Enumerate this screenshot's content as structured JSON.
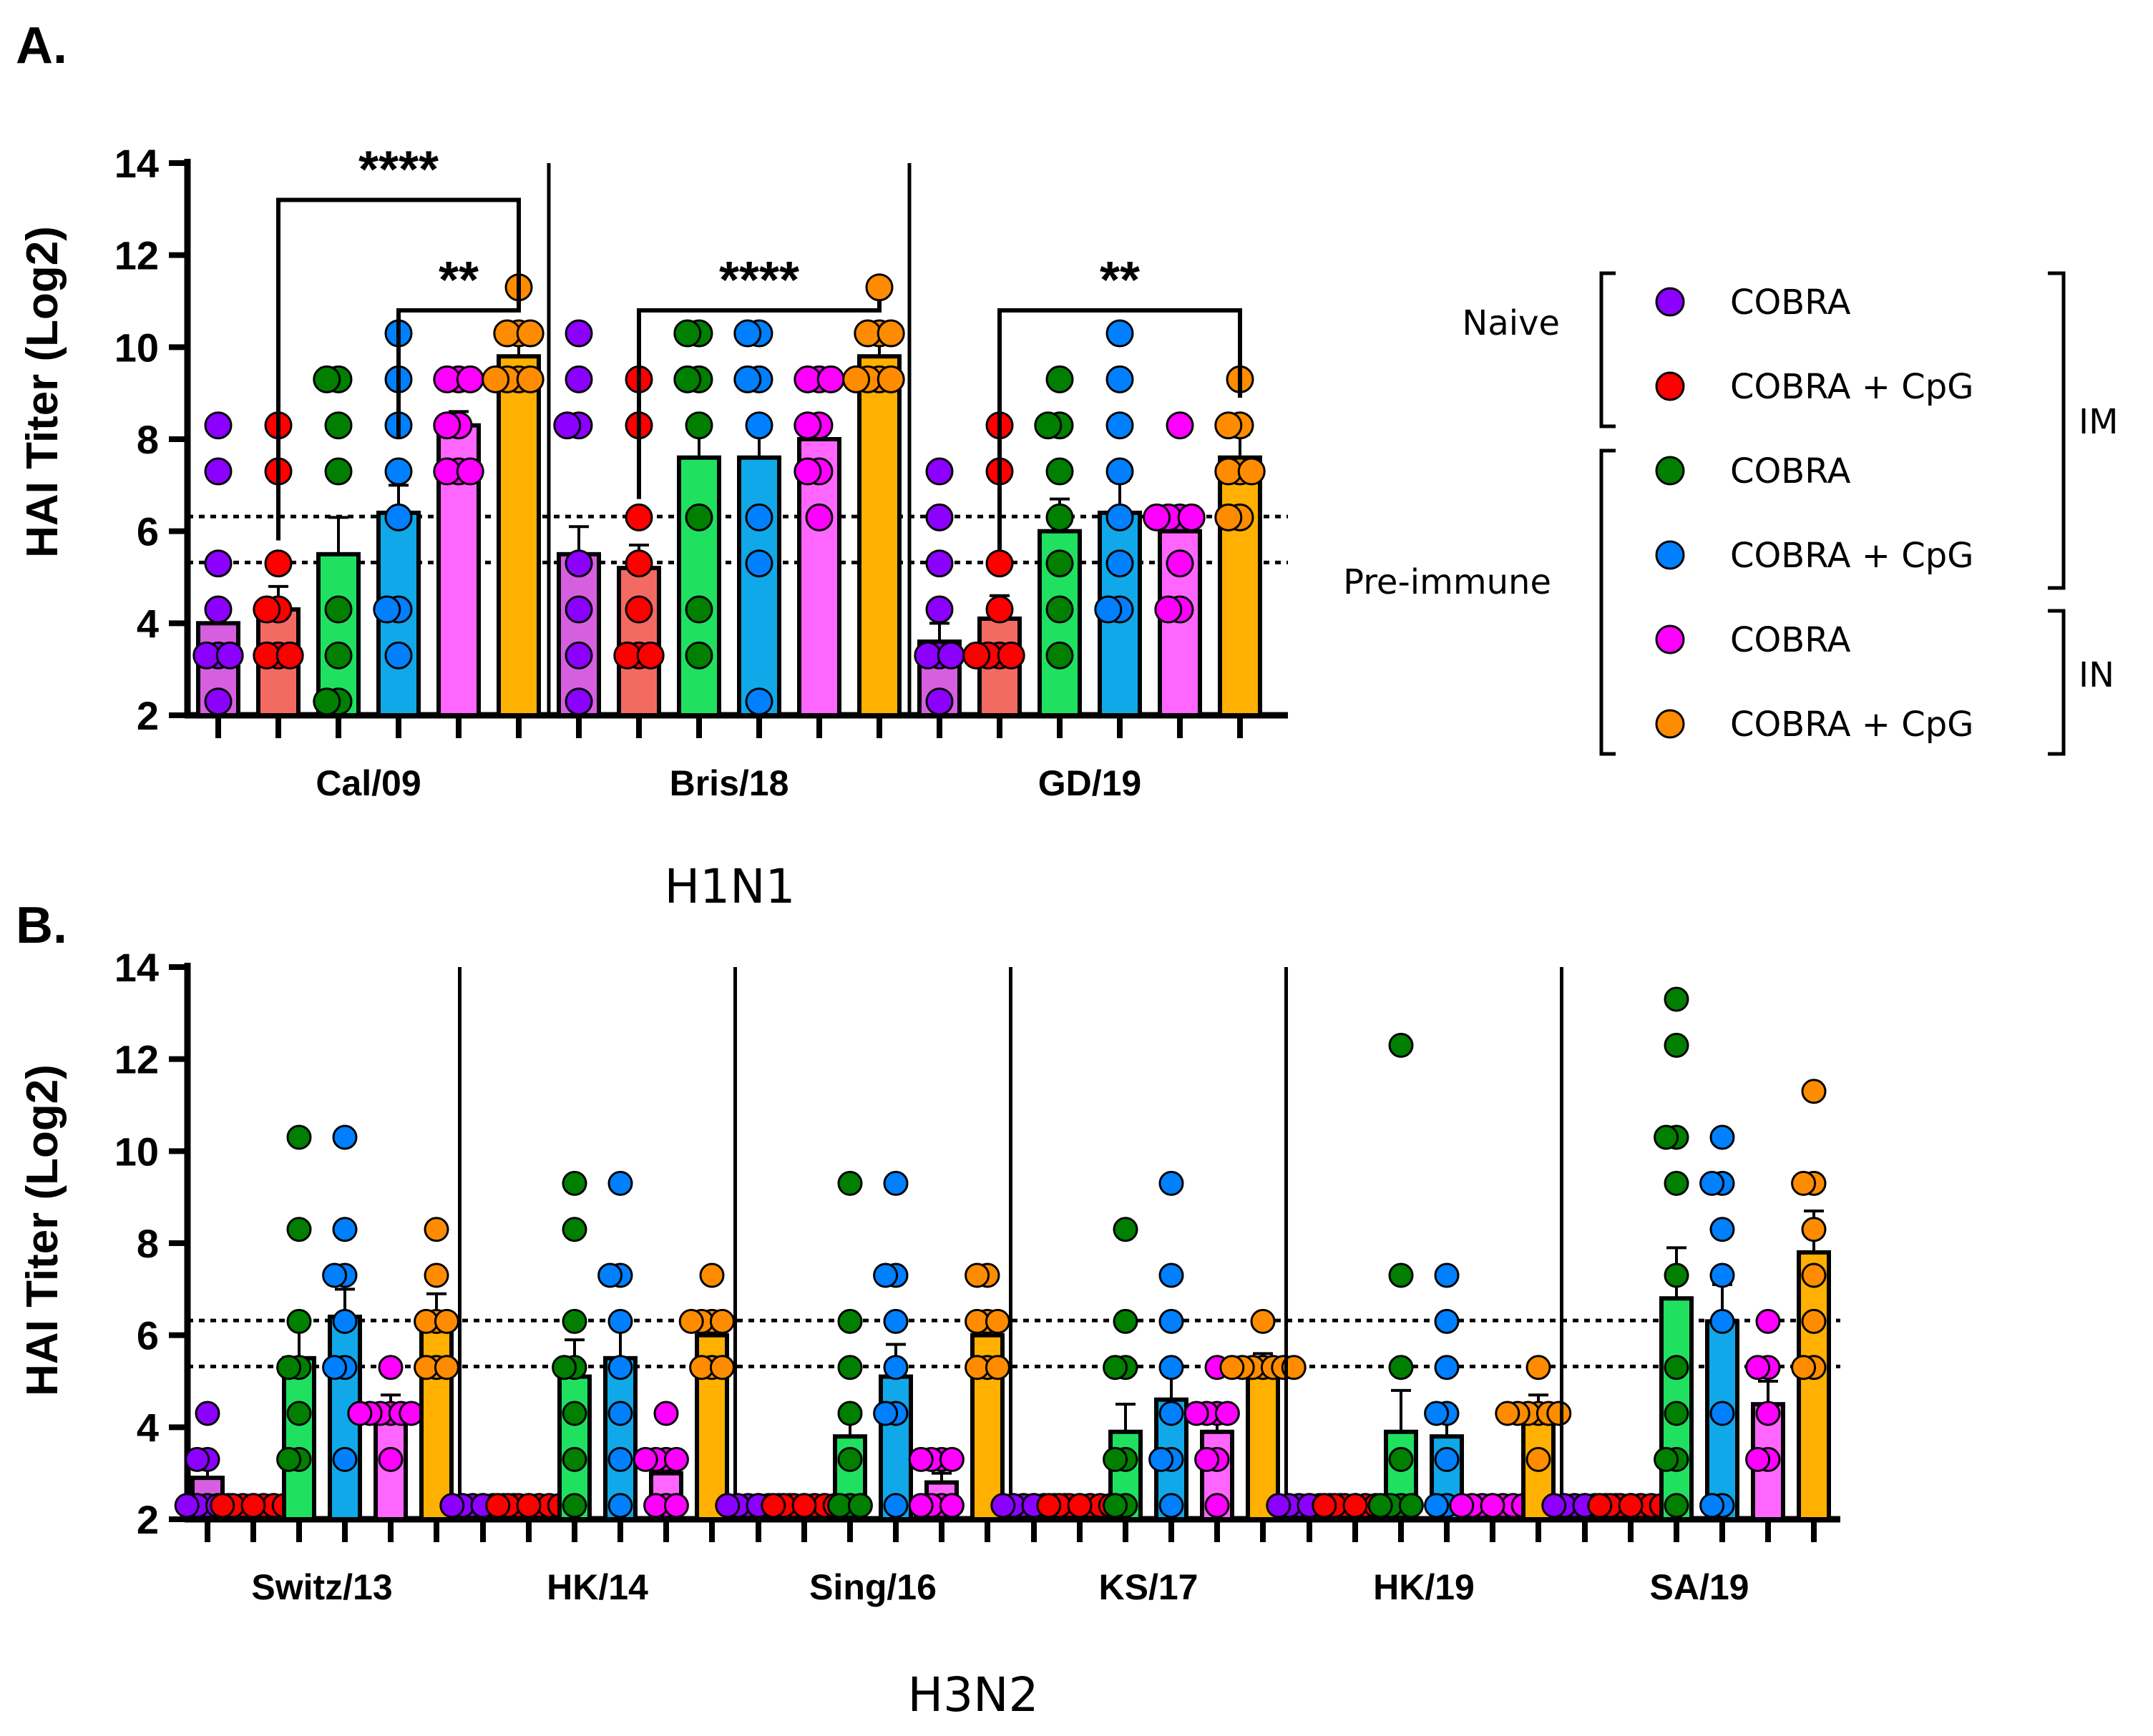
{
  "legend": {
    "rows": [
      {
        "label": "COBRA",
        "color": "#8B00FF"
      },
      {
        "label": "COBRA + CpG",
        "color": "#FF0000"
      },
      {
        "label": "COBRA",
        "color": "#007F00"
      },
      {
        "label": "COBRA + CpG",
        "color": "#0080FF"
      },
      {
        "label": "COBRA",
        "color": "#FF00FF"
      },
      {
        "label": "COBRA + CpG",
        "color": "#FF8C00"
      }
    ],
    "naive_label": "Naive",
    "preimmune_label": "Pre-immune",
    "im_label": "IM",
    "in_label": "IN"
  },
  "colors": {
    "bar_fills": [
      "#D65FE0",
      "#F26A62",
      "#20E060",
      "#10A8E8",
      "#FF66FF",
      "#FFB000"
    ],
    "dot_fills": [
      "#8B00FF",
      "#FF0000",
      "#007F00",
      "#0080FF",
      "#FF00FF",
      "#FF8C00"
    ]
  },
  "chart_data": [
    {
      "panel": "A.",
      "type": "bar",
      "ylabel": "HAI Titer (Log2)",
      "group_label": "H1N1",
      "ylim": [
        2,
        14
      ],
      "yticks": [
        2,
        4,
        6,
        8,
        10,
        12,
        14
      ],
      "reference_lines": [
        6.32,
        5.32
      ],
      "categories": [
        "Cal/09",
        "Bris/18",
        "GD/19"
      ],
      "values": [
        [
          4.0,
          4.3,
          5.5,
          6.4,
          8.3,
          9.8
        ],
        [
          5.5,
          5.2,
          7.6,
          7.6,
          8.0,
          9.8
        ],
        [
          3.6,
          4.1,
          6.0,
          6.4,
          6.0,
          7.6
        ]
      ],
      "errors": [
        [
          0.4,
          0.5,
          0.8,
          0.6,
          0.3,
          0.4
        ],
        [
          0.6,
          0.5,
          0.7,
          0.7,
          0.4,
          0.4
        ],
        [
          0.4,
          0.5,
          0.7,
          0.7,
          0.4,
          0.5
        ]
      ],
      "points": [
        [
          [
            8.3,
            7.3,
            5.3,
            4.3,
            3.3,
            3.3,
            2.3,
            3.3
          ],
          [
            8.3,
            7.3,
            5.3,
            4.3,
            3.3,
            3.3,
            3.3,
            4.3
          ],
          [
            9.3,
            9.3,
            8.3,
            7.3,
            4.3,
            3.3,
            2.3,
            2.3
          ],
          [
            10.3,
            9.3,
            8.3,
            7.3,
            6.3,
            4.3,
            3.3,
            4.3
          ],
          [
            9.3,
            9.3,
            9.3,
            8.3,
            8.3,
            7.3,
            7.3,
            7.3
          ],
          [
            11.3,
            10.3,
            10.3,
            9.3,
            9.3,
            9.3,
            10.3,
            9.3
          ]
        ],
        [
          [
            10.3,
            9.3,
            8.3,
            8.3,
            5.3,
            4.3,
            3.3,
            2.3
          ],
          [
            9.3,
            8.3,
            6.3,
            5.3,
            4.3,
            3.3,
            3.3,
            3.3
          ],
          [
            10.3,
            10.3,
            9.3,
            9.3,
            8.3,
            6.3,
            4.3,
            3.3
          ],
          [
            10.3,
            10.3,
            9.3,
            9.3,
            8.3,
            6.3,
            5.3,
            2.3
          ],
          [
            9.3,
            9.3,
            9.3,
            8.3,
            8.3,
            7.3,
            7.3,
            6.3
          ],
          [
            11.3,
            10.3,
            10.3,
            9.3,
            9.3,
            9.3,
            10.3,
            9.3
          ]
        ],
        [
          [
            7.3,
            6.3,
            5.3,
            4.3,
            3.3,
            3.3,
            2.3,
            3.3
          ],
          [
            8.3,
            7.3,
            5.3,
            4.3,
            3.3,
            3.3,
            3.3,
            3.3
          ],
          [
            9.3,
            8.3,
            8.3,
            7.3,
            6.3,
            5.3,
            4.3,
            3.3
          ],
          [
            10.3,
            9.3,
            8.3,
            7.3,
            6.3,
            5.3,
            4.3,
            4.3
          ],
          [
            8.3,
            6.3,
            6.3,
            6.3,
            6.3,
            5.3,
            4.3,
            4.3
          ],
          [
            9.3,
            8.3,
            8.3,
            7.3,
            7.3,
            6.3,
            6.3,
            7.3
          ]
        ]
      ],
      "significance": [
        {
          "label": "****",
          "category": 0,
          "from": 1,
          "to": 5,
          "y": 13.2
        },
        {
          "label": "**",
          "category": 0,
          "from": 3,
          "to": 5,
          "y": 10.8
        },
        {
          "label": "****",
          "category": 1,
          "from": 1,
          "to": 5,
          "y": 10.8
        },
        {
          "label": "**",
          "category": 2,
          "from": 1,
          "to": 5,
          "y": 10.8
        }
      ]
    },
    {
      "panel": "B.",
      "type": "bar",
      "ylabel": "HAI Titer (Log2)",
      "group_label": "H3N2",
      "ylim": [
        2,
        14
      ],
      "yticks": [
        2,
        4,
        6,
        8,
        10,
        12,
        14
      ],
      "reference_lines": [
        6.32,
        5.32
      ],
      "categories": [
        "Switz/13",
        "HK/14",
        "Sing/16",
        "KS/17",
        "HK/19",
        "SA/19"
      ],
      "values": [
        [
          2.9,
          2.3,
          5.5,
          6.4,
          4.4,
          6.4
        ],
        [
          2.3,
          2.3,
          5.1,
          5.5,
          3.0,
          6.0
        ],
        [
          2.3,
          2.3,
          3.8,
          5.1,
          2.8,
          6.0
        ],
        [
          2.3,
          2.3,
          3.9,
          4.6,
          3.9,
          5.4
        ],
        [
          2.3,
          2.3,
          3.9,
          3.8,
          2.3,
          4.4
        ],
        [
          2.3,
          2.3,
          6.8,
          6.3,
          4.5,
          7.8
        ]
      ],
      "errors": [
        [
          0.3,
          0.0,
          0.8,
          0.6,
          0.3,
          0.5
        ],
        [
          0.0,
          0.0,
          0.8,
          0.7,
          0.3,
          0.4
        ],
        [
          0.0,
          0.0,
          0.6,
          0.7,
          0.2,
          0.4
        ],
        [
          0.0,
          0.0,
          0.6,
          0.6,
          0.4,
          0.2
        ],
        [
          0.0,
          0.0,
          0.9,
          0.5,
          0.0,
          0.3
        ],
        [
          0.0,
          0.0,
          1.1,
          0.8,
          0.5,
          0.9
        ]
      ],
      "points": [
        [
          [
            4.3,
            3.3,
            3.3,
            2.3,
            2.3,
            2.3,
            2.3,
            2.3
          ],
          [
            2.3,
            2.3,
            2.3,
            2.3,
            2.3,
            2.3,
            2.3,
            2.3
          ],
          [
            10.3,
            8.3,
            6.3,
            5.3,
            5.3,
            4.3,
            3.3,
            3.3
          ],
          [
            10.3,
            8.3,
            7.3,
            7.3,
            6.3,
            5.3,
            5.3,
            3.3
          ],
          [
            5.3,
            4.3,
            4.3,
            4.3,
            4.3,
            3.3,
            4.3,
            4.3
          ],
          [
            8.3,
            7.3,
            6.3,
            6.3,
            5.3,
            5.3,
            6.3,
            5.3
          ]
        ],
        [
          [
            2.3,
            2.3,
            2.3,
            2.3,
            2.3,
            2.3,
            2.3,
            2.3
          ],
          [
            2.3,
            2.3,
            2.3,
            2.3,
            2.3,
            2.3,
            2.3,
            2.3
          ],
          [
            9.3,
            8.3,
            6.3,
            5.3,
            5.3,
            4.3,
            3.3,
            2.3
          ],
          [
            9.3,
            7.3,
            7.3,
            6.3,
            5.3,
            4.3,
            3.3,
            2.3
          ],
          [
            4.3,
            3.3,
            3.3,
            3.3,
            2.3,
            2.3,
            3.3,
            2.3
          ],
          [
            7.3,
            6.3,
            6.3,
            6.3,
            5.3,
            5.3,
            6.3,
            5.3
          ]
        ],
        [
          [
            2.3,
            2.3,
            2.3,
            2.3,
            2.3,
            2.3,
            2.3,
            2.3
          ],
          [
            2.3,
            2.3,
            2.3,
            2.3,
            2.3,
            2.3,
            2.3,
            2.3
          ],
          [
            9.3,
            6.3,
            5.3,
            4.3,
            3.3,
            2.3,
            2.3,
            2.3
          ],
          [
            9.3,
            7.3,
            7.3,
            6.3,
            5.3,
            4.3,
            4.3,
            2.3
          ],
          [
            3.3,
            3.3,
            3.3,
            2.3,
            2.3,
            2.3,
            3.3,
            2.3
          ],
          [
            7.3,
            7.3,
            6.3,
            6.3,
            5.3,
            5.3,
            6.3,
            5.3
          ]
        ],
        [
          [
            2.3,
            2.3,
            2.3,
            2.3,
            2.3,
            2.3,
            2.3,
            2.3
          ],
          [
            2.3,
            2.3,
            2.3,
            2.3,
            2.3,
            2.3,
            2.3,
            2.3
          ],
          [
            8.3,
            6.3,
            5.3,
            5.3,
            3.3,
            2.3,
            2.3,
            3.3
          ],
          [
            9.3,
            7.3,
            6.3,
            5.3,
            4.3,
            3.3,
            3.3,
            2.3
          ],
          [
            5.3,
            4.3,
            4.3,
            4.3,
            3.3,
            3.3,
            2.3,
            4.3
          ],
          [
            6.3,
            5.3,
            5.3,
            5.3,
            5.3,
            5.3,
            5.3,
            5.3
          ]
        ],
        [
          [
            2.3,
            2.3,
            2.3,
            2.3,
            2.3,
            2.3,
            2.3,
            2.3
          ],
          [
            2.3,
            2.3,
            2.3,
            2.3,
            2.3,
            2.3,
            2.3,
            2.3
          ],
          [
            12.3,
            7.3,
            5.3,
            3.3,
            2.3,
            2.3,
            2.3,
            2.3
          ],
          [
            7.3,
            6.3,
            5.3,
            4.3,
            4.3,
            3.3,
            2.3,
            2.3
          ],
          [
            2.3,
            2.3,
            2.3,
            2.3,
            2.3,
            2.3,
            2.3,
            2.3
          ],
          [
            5.3,
            4.3,
            4.3,
            4.3,
            3.3,
            4.3,
            4.3,
            4.3
          ]
        ],
        [
          [
            2.3,
            2.3,
            2.3,
            2.3,
            2.3,
            2.3,
            2.3,
            2.3
          ],
          [
            2.3,
            2.3,
            2.3,
            2.3,
            2.3,
            2.3,
            2.3,
            2.3
          ],
          [
            13.3,
            12.3,
            10.3,
            10.3,
            9.3,
            7.3,
            5.3,
            4.3,
            3.3,
            3.3,
            2.3
          ],
          [
            10.3,
            9.3,
            9.3,
            8.3,
            7.3,
            6.3,
            4.3,
            2.3,
            2.3
          ],
          [
            6.3,
            5.3,
            5.3,
            4.3,
            3.3,
            3.3
          ],
          [
            11.3,
            9.3,
            9.3,
            8.3,
            7.3,
            6.3,
            5.3,
            5.3
          ]
        ]
      ]
    }
  ]
}
